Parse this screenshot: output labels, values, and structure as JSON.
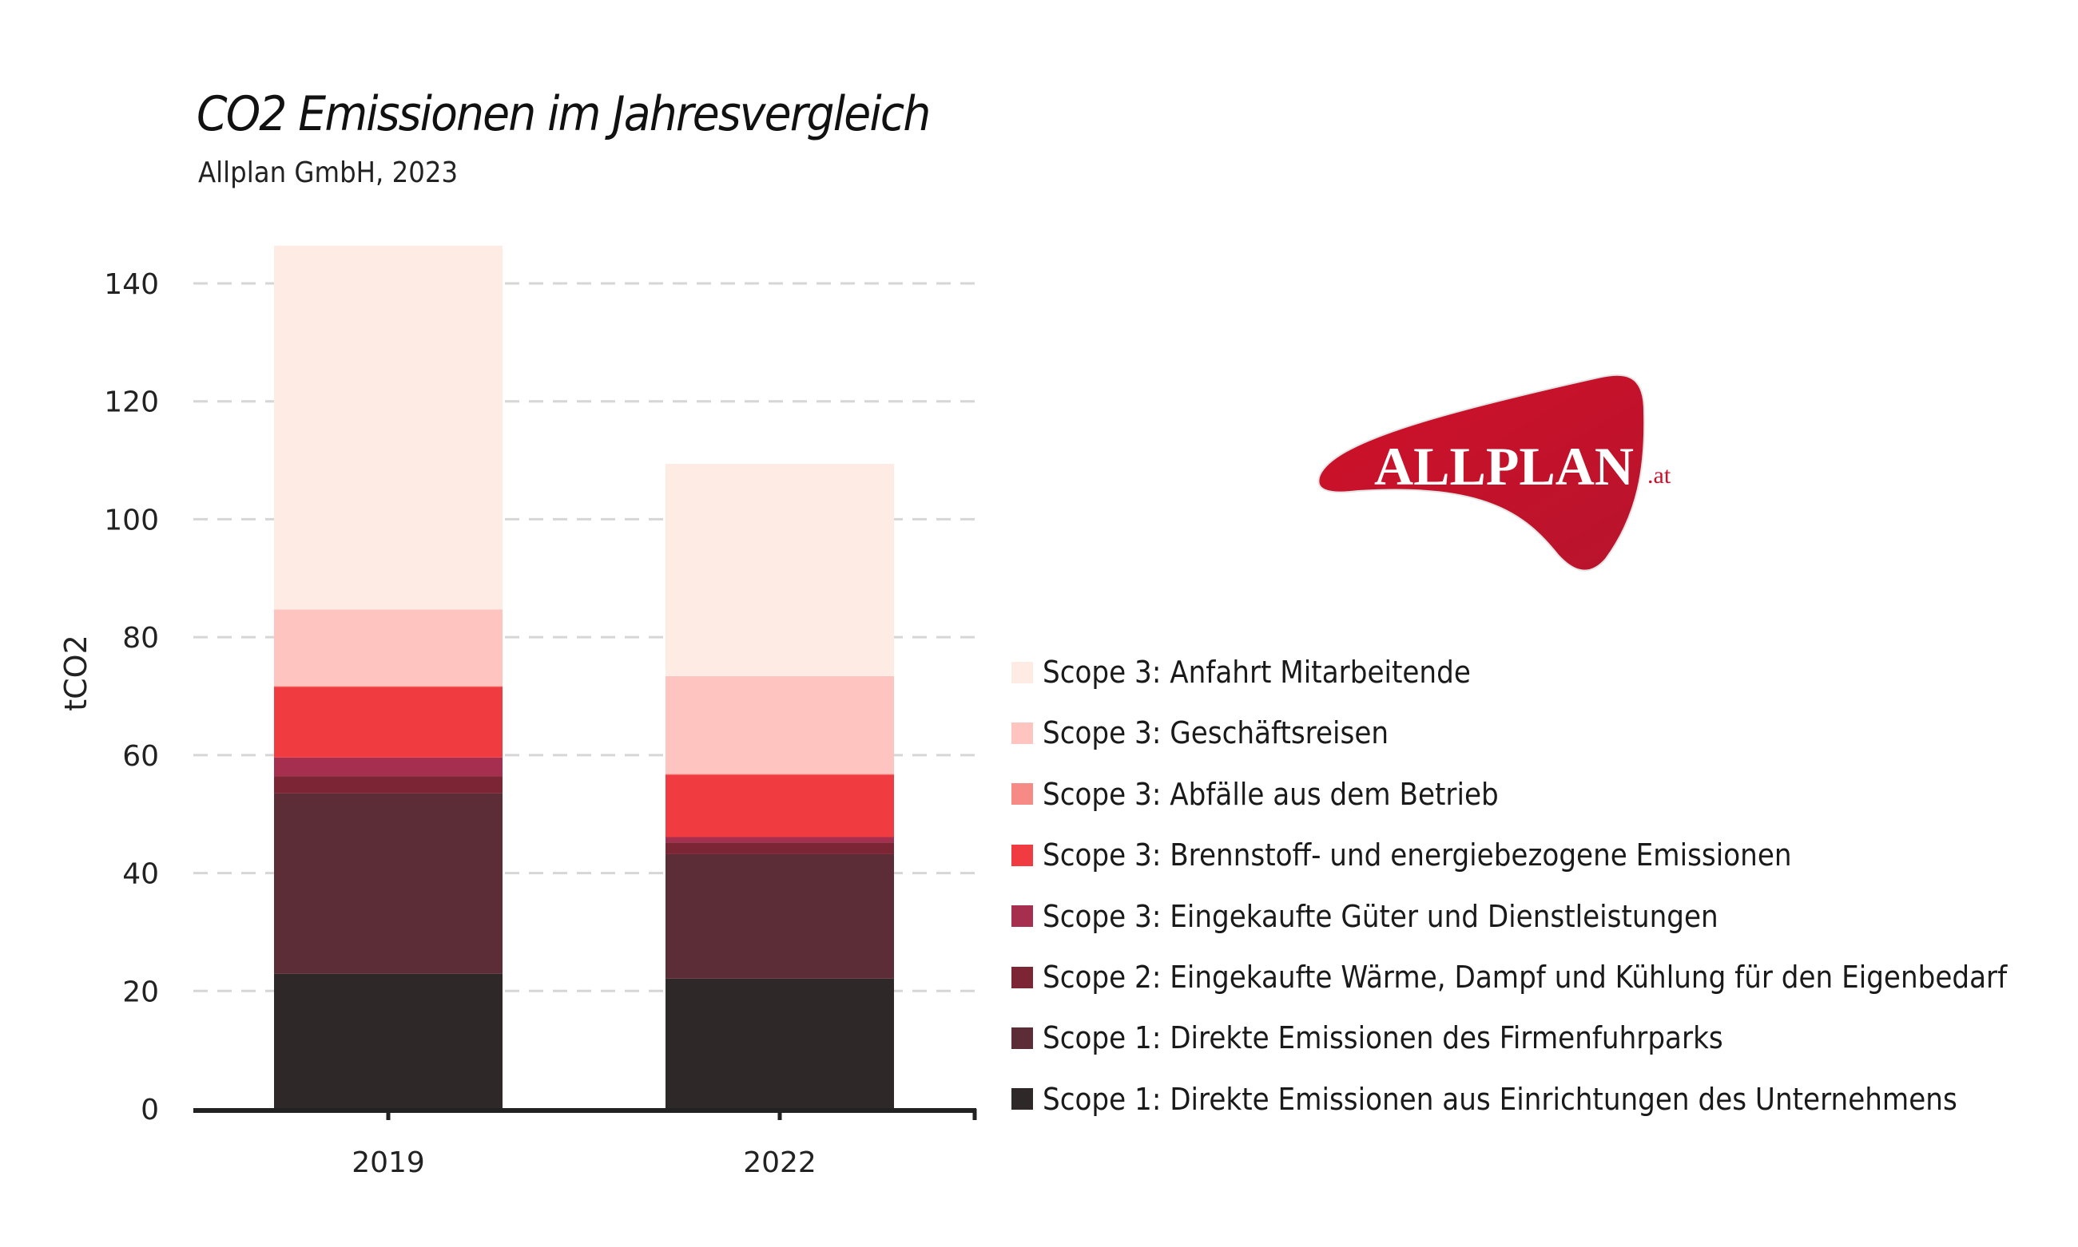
{
  "header": {
    "title": "CO2 Emissionen im Jahresvergleich",
    "subtitle": "Allplan GmbH, 2023"
  },
  "logo": {
    "text": "ALLPLAN",
    "suffix": ".at",
    "color": "#C8102E"
  },
  "chart_data": {
    "type": "bar",
    "stacked": true,
    "title": "CO2 Emissionen im Jahresvergleich",
    "subtitle": "Allplan GmbH, 2023",
    "xlabel": "",
    "ylabel": "tCO2",
    "categories": [
      "2019",
      "2022"
    ],
    "ylim": [
      0,
      147
    ],
    "yticks": [
      0,
      20,
      40,
      60,
      80,
      100,
      120,
      140
    ],
    "ytick_labels": [
      "0",
      "20",
      "40",
      "60",
      "80",
      "100",
      "120",
      "140"
    ],
    "grid": "horizontal dashed",
    "legend_position": "right",
    "series": [
      {
        "name": "Scope 1: Direkte Emissionen aus Einrichtungen des Unternehmens",
        "color": "#2E2829",
        "values": [
          22.9,
          22.1
        ]
      },
      {
        "name": "Scope 1: Direkte Emissionen des Firmenfuhrparks",
        "color": "#5D2D37",
        "values": [
          30.6,
          21.1
        ]
      },
      {
        "name": "Scope 2: Eingekaufte Wärme, Dampf und Kühlung für den Eigenbedarf",
        "color": "#7B2535",
        "values": [
          2.9,
          2.0
        ]
      },
      {
        "name": "Scope 3: Eingekaufte Güter und Dienstleistungen",
        "color": "#A62F50",
        "values": [
          3.2,
          0.9
        ]
      },
      {
        "name": "Scope 3: Brennstoff- und energiebezogene Emissionen",
        "color": "#F03B40",
        "values": [
          12.0,
          10.6
        ]
      },
      {
        "name": "Scope 3: Abfälle aus dem Betrieb",
        "color": "#F68A84",
        "values": [
          0.1,
          0.1
        ]
      },
      {
        "name": "Scope 3: Geschäftsreisen",
        "color": "#FEC4C0",
        "values": [
          13.0,
          16.6
        ]
      },
      {
        "name": "Scope 3: Anfahrt Mitarbeitende",
        "color": "#FEEBE4",
        "values": [
          61.7,
          36.0
        ]
      }
    ]
  }
}
